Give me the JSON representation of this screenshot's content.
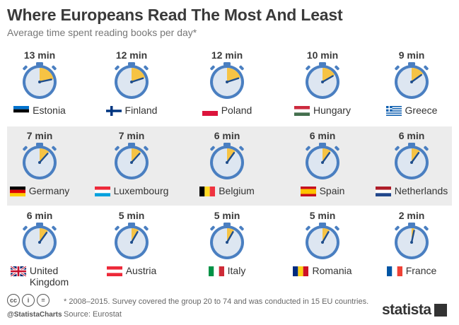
{
  "header": {
    "title": "Where Europeans Read The Most And Least",
    "subtitle": "Average time spent reading books per day*"
  },
  "chart_data": {
    "type": "table",
    "unit": "min",
    "items": [
      {
        "country": "Estonia",
        "minutes": 13,
        "label": "13 min",
        "flag": "estonia-flag"
      },
      {
        "country": "Finland",
        "minutes": 12,
        "label": "12 min",
        "flag": "finland-flag"
      },
      {
        "country": "Poland",
        "minutes": 12,
        "label": "12 min",
        "flag": "poland-flag"
      },
      {
        "country": "Hungary",
        "minutes": 10,
        "label": "10 min",
        "flag": "hungary-flag"
      },
      {
        "country": "Greece",
        "minutes": 9,
        "label": "9 min",
        "flag": "greece-flag"
      },
      {
        "country": "Germany",
        "minutes": 7,
        "label": "7 min",
        "flag": "germany-flag"
      },
      {
        "country": "Luxembourg",
        "minutes": 7,
        "label": "7 min",
        "flag": "luxembourg-flag"
      },
      {
        "country": "Belgium",
        "minutes": 6,
        "label": "6 min",
        "flag": "belgium-flag"
      },
      {
        "country": "Spain",
        "minutes": 6,
        "label": "6 min",
        "flag": "spain-flag"
      },
      {
        "country": "Netherlands",
        "minutes": 6,
        "label": "6 min",
        "flag": "netherlands-flag"
      },
      {
        "country": "United Kingdom",
        "minutes": 6,
        "label": "6 min",
        "flag": "united-kingdom-flag"
      },
      {
        "country": "Austria",
        "minutes": 5,
        "label": "5 min",
        "flag": "austria-flag"
      },
      {
        "country": "Italy",
        "minutes": 5,
        "label": "5 min",
        "flag": "italy-flag"
      },
      {
        "country": "Romania",
        "minutes": 5,
        "label": "5 min",
        "flag": "romania-flag"
      },
      {
        "country": "France",
        "minutes": 2,
        "label": "2 min",
        "flag": "france-flag"
      }
    ]
  },
  "footer": {
    "note": "* 2008–2015. Survey covered the group 20 to 74 and was conducted in 15 EU countries.",
    "source": "Source: Eurostat",
    "handle": "@StatistaCharts",
    "brand": "statista",
    "license_icons": [
      "cc-icon",
      "by-icon",
      "nd-icon"
    ]
  },
  "colors": {
    "watch_blue": "#4a7fc1",
    "face": "#dde6f1",
    "elapsed": "#f6c344",
    "hand": "#1f4e8c"
  }
}
